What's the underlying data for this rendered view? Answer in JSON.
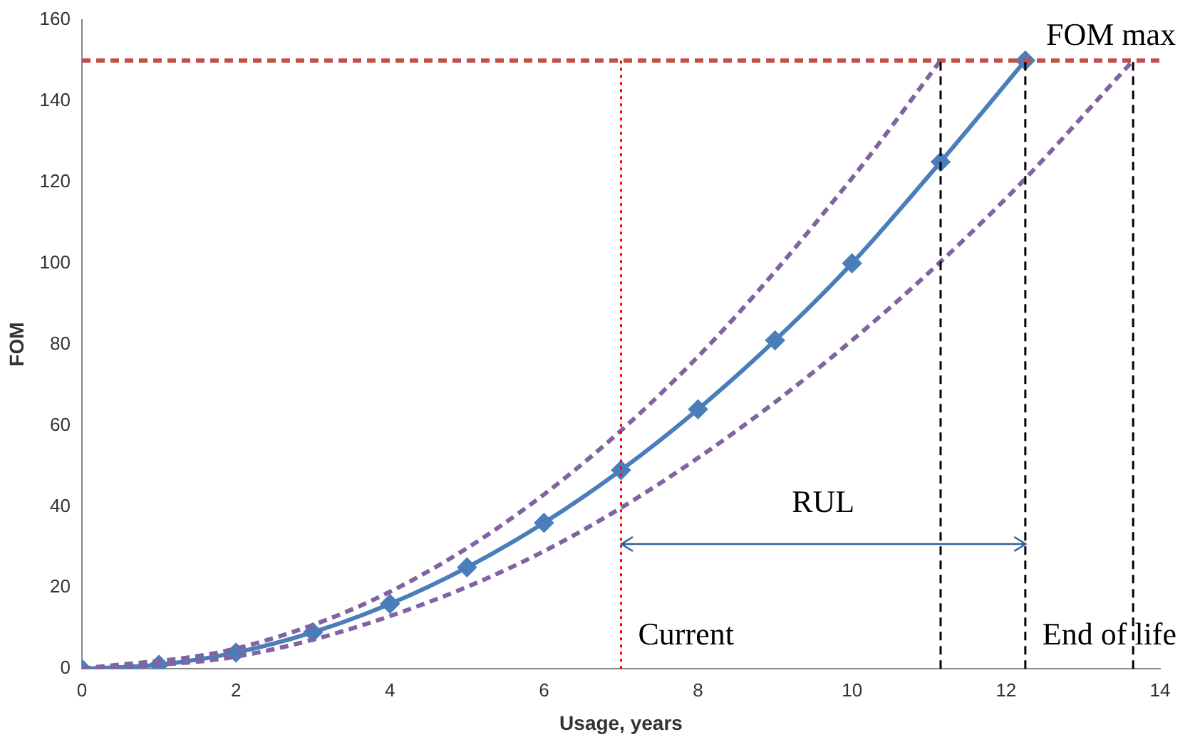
{
  "chart_data": {
    "type": "line",
    "xlabel": "Usage, years",
    "ylabel": "FOM",
    "xlim": [
      0,
      14
    ],
    "xticks": [
      0,
      2,
      4,
      6,
      8,
      10,
      12,
      14
    ],
    "ylim": [
      0,
      160
    ],
    "yticks": [
      0,
      20,
      40,
      60,
      80,
      100,
      120,
      140,
      160
    ],
    "grid": false,
    "legend": false,
    "series": [
      {
        "color": "#8064a2",
        "line_style": "dashed",
        "marker": "none",
        "x": [
          0,
          2,
          4,
          6,
          8,
          10,
          11.15
        ],
        "values": [
          0,
          5,
          19,
          43,
          77,
          121,
          150
        ]
      },
      {
        "color": "#8064a2",
        "line_style": "dashed",
        "marker": "none",
        "x": [
          0,
          2,
          4,
          6,
          8,
          10,
          12,
          13.65
        ],
        "values": [
          0,
          3,
          13,
          29,
          52,
          81,
          116,
          150
        ]
      },
      {
        "color": "#4a7ebb",
        "line_style": "solid",
        "marker": "diamond",
        "x": [
          0,
          1,
          2,
          3,
          4,
          5,
          6,
          7,
          8,
          9,
          10,
          11.15,
          12.25
        ],
        "values": [
          0,
          1,
          4,
          9,
          16,
          25,
          36,
          49,
          64,
          81,
          100,
          125,
          150
        ]
      }
    ],
    "ref_lines": [
      {
        "axis": "y",
        "value": 150,
        "label": "FOM max",
        "color": "#c0504d",
        "line_style": "dashed"
      },
      {
        "axis": "x",
        "value": 7,
        "label": "Current",
        "color": "#ff0000",
        "line_style": "dotted"
      },
      {
        "axis": "x",
        "value": 11.15,
        "label": null,
        "color": "#000000",
        "line_style": "dashed"
      },
      {
        "axis": "x",
        "value": 12.25,
        "label": "End of life",
        "color": "#000000",
        "line_style": "dashed"
      },
      {
        "axis": "x",
        "value": 13.65,
        "label": null,
        "color": "#000000",
        "line_style": "dashed"
      }
    ],
    "annotations": [
      "RUL"
    ]
  }
}
